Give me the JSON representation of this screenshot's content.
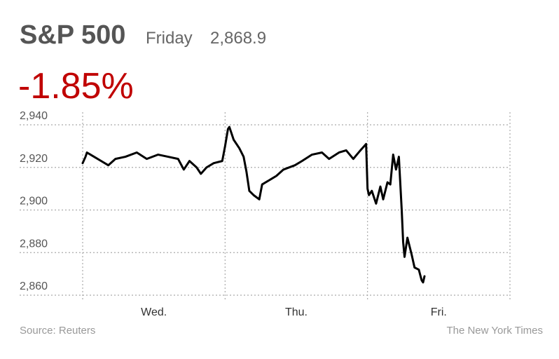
{
  "chart_data": {
    "type": "line",
    "title": "S&P 500",
    "day_label": "Friday",
    "last_value": "2,868.9",
    "change": "-1.85%",
    "source": "Source: Reuters",
    "credit": "The New York Times",
    "categories": [
      "Wed.",
      "Thu.",
      "Fri."
    ],
    "xlim": [
      0,
      3
    ],
    "ylim": [
      2860,
      2940
    ],
    "yticks": [
      {
        "value": 2860,
        "label": "2,860"
      },
      {
        "value": 2880,
        "label": "2,880"
      },
      {
        "value": 2900,
        "label": "2,900"
      },
      {
        "value": 2920,
        "label": "2,920"
      },
      {
        "value": 2940,
        "label": "2,940"
      }
    ],
    "grid": true,
    "series": [
      {
        "color": "#000000",
        "x": [
          0,
          0.02,
          0.03,
          0.08,
          0.13,
          0.18,
          0.23,
          0.3,
          0.38,
          0.45,
          0.53,
          0.6,
          0.67,
          0.71,
          0.75,
          0.8,
          0.83,
          0.87,
          0.92,
          0.98,
          1.0,
          1.02,
          1.03,
          1.06,
          1.1,
          1.13,
          1.15,
          1.17,
          1.2,
          1.24,
          1.26,
          1.31,
          1.36,
          1.41,
          1.49,
          1.54,
          1.61,
          1.68,
          1.73,
          1.8,
          1.85,
          1.9,
          1.95,
          1.99,
          2.0,
          2.01,
          2.03,
          2.06,
          2.09,
          2.11,
          2.14,
          2.16,
          2.18,
          2.2,
          2.22,
          2.24,
          2.25,
          2.26,
          2.28,
          2.31,
          2.33,
          2.36,
          2.38,
          2.39,
          2.4
        ],
        "values": [
          2922,
          2925,
          2927,
          2925,
          2923,
          2921,
          2924,
          2925,
          2927,
          2924,
          2926,
          2925,
          2924,
          2919,
          2923,
          2920,
          2917,
          2920,
          2922,
          2923,
          2930,
          2938,
          2939,
          2933,
          2929,
          2925,
          2918,
          2909,
          2907,
          2905,
          2912,
          2914,
          2916,
          2919,
          2921,
          2923,
          2926,
          2927,
          2924,
          2927,
          2928,
          2924,
          2928,
          2931,
          2910,
          2907,
          2909,
          2903,
          2911,
          2905,
          2913,
          2912,
          2926,
          2919,
          2925,
          2900,
          2885,
          2878,
          2887,
          2879,
          2873,
          2872,
          2867,
          2866,
          2868.9
        ]
      }
    ]
  }
}
